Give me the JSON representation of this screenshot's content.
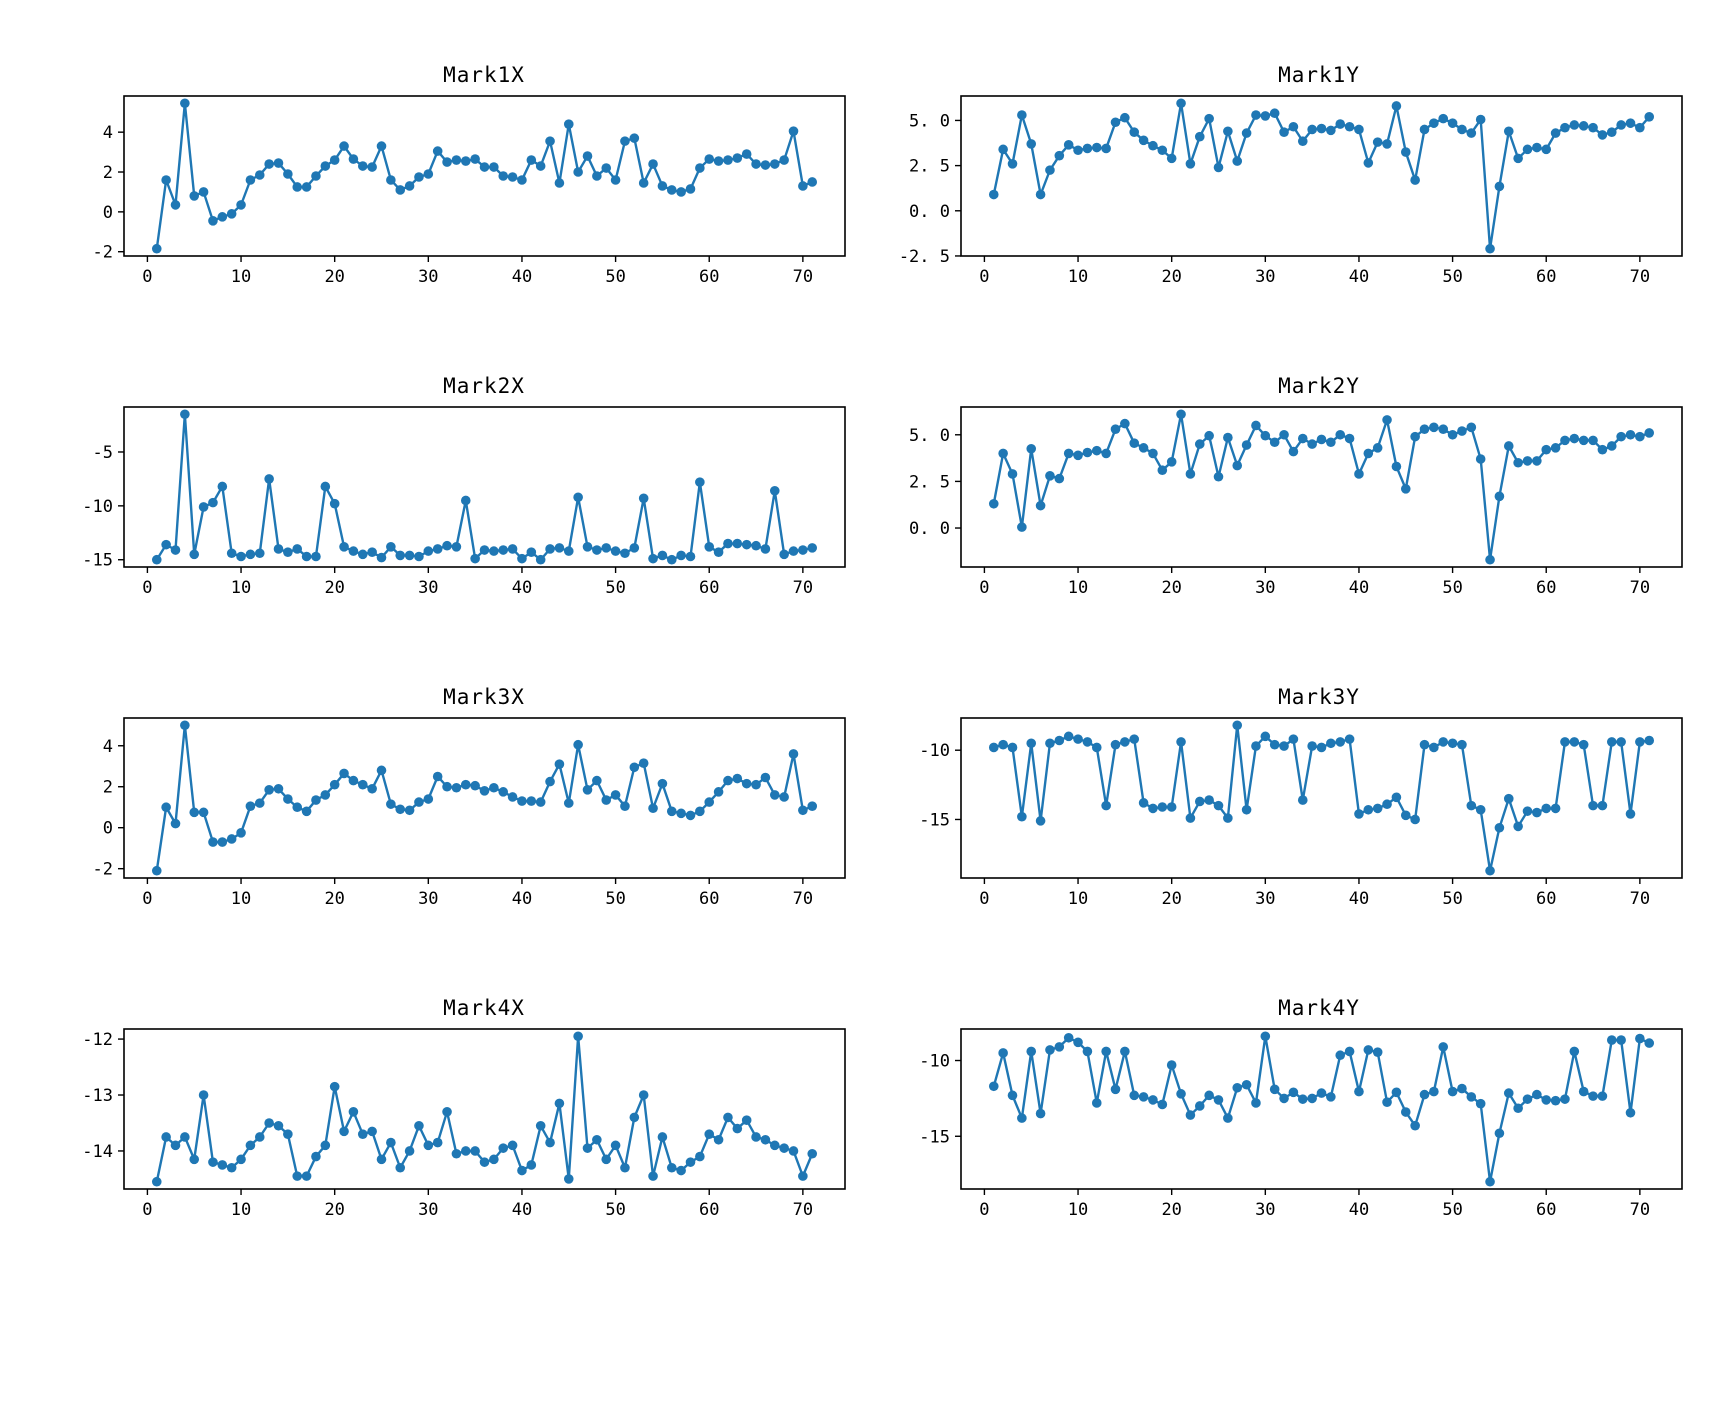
{
  "figure": {
    "background": "#ffffff",
    "line_color": "#1f77b4",
    "marker": "circle"
  },
  "chart_data": [
    {
      "type": "line",
      "title": "Mark1X",
      "x_start": 1,
      "x_ticks": [
        0,
        10,
        20,
        30,
        40,
        50,
        60,
        70
      ],
      "y_tick_values": [
        4,
        2,
        0,
        -2
      ],
      "y_tick_labels": [
        "4",
        "2",
        "0",
        "-2"
      ],
      "values": [
        -1.85,
        1.6,
        0.35,
        5.45,
        0.8,
        1.0,
        -0.45,
        -0.25,
        -0.1,
        0.35,
        1.6,
        1.85,
        2.4,
        2.45,
        1.9,
        1.25,
        1.25,
        1.8,
        2.3,
        2.6,
        3.3,
        2.65,
        2.3,
        2.25,
        3.3,
        1.6,
        1.1,
        1.3,
        1.75,
        1.9,
        3.05,
        2.5,
        2.6,
        2.55,
        2.65,
        2.25,
        2.25,
        1.8,
        1.75,
        1.6,
        2.6,
        2.3,
        3.55,
        1.45,
        4.4,
        2.0,
        2.8,
        1.8,
        2.2,
        1.6,
        3.55,
        3.7,
        1.45,
        2.4,
        1.3,
        1.1,
        1.0,
        1.15,
        2.2,
        2.65,
        2.55,
        2.6,
        2.7,
        2.9,
        2.4,
        2.35,
        2.4,
        2.6,
        4.05,
        1.3,
        1.5
      ]
    },
    {
      "type": "line",
      "title": "Mark1Y",
      "x_start": 1,
      "x_ticks": [
        0,
        10,
        20,
        30,
        40,
        50,
        60,
        70
      ],
      "y_tick_values": [
        5.0,
        2.5,
        0.0,
        -2.5
      ],
      "y_tick_labels": [
        "5. 0",
        "2. 5",
        "0. 0",
        "-2. 5"
      ],
      "values": [
        0.9,
        3.4,
        2.6,
        5.3,
        3.7,
        0.9,
        2.25,
        3.05,
        3.65,
        3.35,
        3.45,
        3.5,
        3.45,
        4.9,
        5.15,
        4.35,
        3.9,
        3.6,
        3.35,
        2.9,
        5.95,
        2.6,
        4.1,
        5.1,
        2.4,
        4.4,
        2.75,
        4.3,
        5.3,
        5.25,
        5.4,
        4.35,
        4.65,
        3.85,
        4.5,
        4.55,
        4.45,
        4.8,
        4.65,
        4.5,
        2.65,
        3.8,
        3.7,
        5.8,
        3.25,
        1.7,
        4.5,
        4.85,
        5.1,
        4.85,
        4.5,
        4.3,
        5.05,
        -2.1,
        1.35,
        4.4,
        2.9,
        3.4,
        3.5,
        3.4,
        4.3,
        4.6,
        4.75,
        4.7,
        4.6,
        4.2,
        4.35,
        4.75,
        4.85,
        4.6,
        5.2
      ]
    },
    {
      "type": "line",
      "title": "Mark2X",
      "x_start": 1,
      "x_ticks": [
        0,
        10,
        20,
        30,
        40,
        50,
        60,
        70
      ],
      "y_tick_values": [
        -5,
        -10,
        -15
      ],
      "y_tick_labels": [
        "-5",
        "-10",
        "-15"
      ],
      "values": [
        -15.0,
        -13.6,
        -14.1,
        -1.5,
        -14.5,
        -10.1,
        -9.7,
        -8.2,
        -14.4,
        -14.7,
        -14.5,
        -14.4,
        -7.5,
        -14.0,
        -14.3,
        -14.0,
        -14.7,
        -14.7,
        -8.2,
        -9.8,
        -13.8,
        -14.2,
        -14.5,
        -14.3,
        -14.8,
        -13.8,
        -14.6,
        -14.6,
        -14.7,
        -14.2,
        -14.0,
        -13.7,
        -13.8,
        -9.5,
        -14.9,
        -14.1,
        -14.2,
        -14.1,
        -14.0,
        -14.9,
        -14.3,
        -15.0,
        -14.0,
        -13.9,
        -14.2,
        -9.2,
        -13.8,
        -14.1,
        -13.9,
        -14.2,
        -14.4,
        -13.9,
        -9.3,
        -14.9,
        -14.6,
        -15.0,
        -14.6,
        -14.7,
        -7.8,
        -13.8,
        -14.3,
        -13.5,
        -13.5,
        -13.6,
        -13.7,
        -14.0,
        -8.6,
        -14.5,
        -14.2,
        -14.1,
        -13.9
      ]
    },
    {
      "type": "line",
      "title": "Mark2Y",
      "x_start": 1,
      "x_ticks": [
        0,
        10,
        20,
        30,
        40,
        50,
        60,
        70
      ],
      "y_tick_values": [
        5.0,
        2.5,
        0.0
      ],
      "y_tick_labels": [
        "5. 0",
        "2. 5",
        "0. 0"
      ],
      "values": [
        1.3,
        4.0,
        2.9,
        0.05,
        4.25,
        1.2,
        2.8,
        2.65,
        4.0,
        3.9,
        4.05,
        4.15,
        4.0,
        5.3,
        5.6,
        4.55,
        4.3,
        4.0,
        3.1,
        3.55,
        6.1,
        2.9,
        4.5,
        4.95,
        2.75,
        4.85,
        3.35,
        4.45,
        5.5,
        4.95,
        4.6,
        5.0,
        4.1,
        4.8,
        4.5,
        4.75,
        4.6,
        5.0,
        4.8,
        2.9,
        4.0,
        4.3,
        5.8,
        3.3,
        2.1,
        4.9,
        5.3,
        5.4,
        5.3,
        5.0,
        5.2,
        5.4,
        3.7,
        -1.7,
        1.7,
        4.4,
        3.5,
        3.6,
        3.6,
        4.2,
        4.3,
        4.7,
        4.8,
        4.7,
        4.7,
        4.2,
        4.4,
        4.9,
        5.0,
        4.9,
        5.1
      ]
    },
    {
      "type": "line",
      "title": "Mark3X",
      "x_start": 1,
      "x_ticks": [
        0,
        10,
        20,
        30,
        40,
        50,
        60,
        70
      ],
      "y_tick_values": [
        4,
        2,
        0,
        -2
      ],
      "y_tick_labels": [
        "4",
        "2",
        "0",
        "-2"
      ],
      "values": [
        -2.1,
        1.0,
        0.2,
        5.0,
        0.75,
        0.75,
        -0.7,
        -0.7,
        -0.55,
        -0.25,
        1.05,
        1.2,
        1.85,
        1.9,
        1.4,
        1.0,
        0.8,
        1.35,
        1.6,
        2.1,
        2.65,
        2.3,
        2.1,
        1.9,
        2.8,
        1.15,
        0.9,
        0.85,
        1.25,
        1.4,
        2.5,
        2.0,
        1.95,
        2.1,
        2.05,
        1.8,
        1.95,
        1.75,
        1.5,
        1.3,
        1.3,
        1.25,
        2.25,
        3.1,
        1.2,
        4.05,
        1.85,
        2.3,
        1.35,
        1.6,
        1.05,
        2.95,
        3.15,
        0.95,
        2.15,
        0.8,
        0.7,
        0.6,
        0.8,
        1.25,
        1.75,
        2.3,
        2.4,
        2.15,
        2.1,
        2.45,
        1.6,
        1.5,
        3.6,
        0.85,
        1.05
      ]
    },
    {
      "type": "line",
      "title": "Mark3Y",
      "x_start": 1,
      "x_ticks": [
        0,
        10,
        20,
        30,
        40,
        50,
        60,
        70
      ],
      "y_tick_values": [
        -10,
        -15
      ],
      "y_tick_labels": [
        "-10",
        "-15"
      ],
      "values": [
        -9.8,
        -9.6,
        -9.8,
        -14.8,
        -9.5,
        -15.1,
        -9.5,
        -9.3,
        -9.0,
        -9.2,
        -9.4,
        -9.8,
        -14.0,
        -9.6,
        -9.4,
        -9.2,
        -13.8,
        -14.2,
        -14.1,
        -14.1,
        -9.4,
        -14.9,
        -13.7,
        -13.6,
        -14.0,
        -14.9,
        -8.2,
        -14.3,
        -9.7,
        -9.0,
        -9.6,
        -9.7,
        -9.2,
        -13.6,
        -9.7,
        -9.8,
        -9.5,
        -9.4,
        -9.2,
        -14.6,
        -14.3,
        -14.2,
        -13.9,
        -13.4,
        -14.7,
        -15.0,
        -9.6,
        -9.8,
        -9.4,
        -9.5,
        -9.6,
        -14.0,
        -14.3,
        -18.7,
        -15.6,
        -13.5,
        -15.5,
        -14.4,
        -14.5,
        -14.2,
        -14.2,
        -9.4,
        -9.4,
        -9.6,
        -14.0,
        -14.0,
        -9.4,
        -9.4,
        -14.6,
        -9.4,
        -9.3
      ]
    },
    {
      "type": "line",
      "title": "Mark4X",
      "x_start": 1,
      "x_ticks": [
        0,
        10,
        20,
        30,
        40,
        50,
        60,
        70
      ],
      "y_tick_values": [
        -12,
        -13,
        -14
      ],
      "y_tick_labels": [
        "-12",
        "-13",
        "-14"
      ],
      "values": [
        -14.55,
        -13.75,
        -13.9,
        -13.75,
        -14.15,
        -13.0,
        -14.2,
        -14.25,
        -14.3,
        -14.15,
        -13.9,
        -13.75,
        -13.5,
        -13.55,
        -13.7,
        -14.45,
        -14.45,
        -14.1,
        -13.9,
        -12.85,
        -13.65,
        -13.3,
        -13.7,
        -13.65,
        -14.15,
        -13.85,
        -14.3,
        -14.0,
        -13.55,
        -13.9,
        -13.85,
        -13.3,
        -14.05,
        -14.0,
        -14.0,
        -14.2,
        -14.15,
        -13.95,
        -13.9,
        -14.35,
        -14.25,
        -13.55,
        -13.85,
        -13.15,
        -14.5,
        -11.95,
        -13.95,
        -13.8,
        -14.15,
        -13.9,
        -14.3,
        -13.4,
        -13.0,
        -14.45,
        -13.75,
        -14.3,
        -14.35,
        -14.2,
        -14.1,
        -13.7,
        -13.8,
        -13.4,
        -13.6,
        -13.45,
        -13.75,
        -13.8,
        -13.9,
        -13.95,
        -14.0,
        -14.45,
        -14.05
      ]
    },
    {
      "type": "line",
      "title": "Mark4Y",
      "x_start": 1,
      "x_ticks": [
        0,
        10,
        20,
        30,
        40,
        50,
        60,
        70
      ],
      "y_tick_values": [
        -10,
        -15
      ],
      "y_tick_labels": [
        "-10",
        "-15"
      ],
      "values": [
        -11.7,
        -9.5,
        -12.3,
        -13.8,
        -9.4,
        -13.5,
        -9.3,
        -9.1,
        -8.5,
        -8.8,
        -9.4,
        -12.8,
        -9.4,
        -11.9,
        -9.4,
        -12.3,
        -12.4,
        -12.6,
        -12.9,
        -10.3,
        -12.2,
        -13.6,
        -13.0,
        -12.3,
        -12.6,
        -13.8,
        -11.8,
        -11.6,
        -12.8,
        -8.4,
        -11.9,
        -12.5,
        -12.1,
        -12.55,
        -12.5,
        -12.15,
        -12.4,
        -9.65,
        -9.4,
        -12.05,
        -9.3,
        -9.45,
        -12.75,
        -12.1,
        -13.4,
        -14.3,
        -12.25,
        -12.05,
        -9.1,
        -12.05,
        -11.85,
        -12.4,
        -12.85,
        -18.0,
        -14.8,
        -12.15,
        -13.15,
        -12.55,
        -12.25,
        -12.6,
        -12.65,
        -12.55,
        -9.4,
        -12.05,
        -12.35,
        -12.35,
        -8.65,
        -8.65,
        -13.45,
        -8.55,
        -8.85
      ]
    }
  ],
  "layout_note": {
    "grid": "4 rows x 2 columns"
  }
}
